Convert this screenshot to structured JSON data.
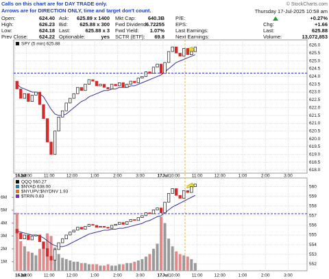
{
  "header": {
    "note_lines": [
      "Calls on this chart are for DAY TRADE only.",
      "Arrows are for DIRECTION ONLY, time and target don't count."
    ],
    "credit": "© StockCharts.com",
    "timestamp": "Thursday 17-Jul-2025 10:58 am"
  },
  "quote": {
    "rows": [
      [
        [
          "Open:",
          "624.40"
        ],
        [
          "Ask:",
          "625.89 x 1400"
        ],
        [
          "Mkt Cap:",
          "640.3B"
        ],
        [
          "P/E:"
        ],
        [
          "+0.27%"
        ]
      ],
      [
        [
          "High:",
          "626.23"
        ],
        [
          "Bid:",
          "625.88 x 300"
        ],
        [
          "Fwd Dividend:",
          "6.72255"
        ],
        [
          "EPS:"
        ],
        [
          "Chg:",
          "+1.66"
        ]
      ],
      [
        [
          "Low:",
          "624.18"
        ],
        [
          "Last:",
          "625.88 x 3"
        ],
        [
          "Fwd Yield:",
          "1.07%"
        ],
        [
          "Last Earnings:"
        ],
        [
          "Last:",
          "625.88"
        ]
      ],
      [
        [
          "Prev Close:",
          "624.22"
        ],
        [
          "Optionable:",
          "yes"
        ],
        [
          "SCTR (ETF):",
          "69.8"
        ],
        [
          "Next Earnings:"
        ],
        [
          "Volume:",
          "13,072,853"
        ]
      ]
    ]
  },
  "chart_data": [
    {
      "type": "candlestick",
      "xtick_labels": [
        "16Jul",
        "10:00",
        "11:00",
        "12:00",
        "1:00",
        "2:00",
        "3:00",
        "17Jul",
        "10:00",
        "11:00",
        "12:00",
        "1:00",
        "2:00",
        "3:00"
      ],
      "ylim": [
        617.8,
        626.35
      ],
      "yticks": [
        {
          "value": 618,
          "label": "618.0"
        },
        {
          "value": 618.5,
          "label": "618.5"
        },
        {
          "value": 619,
          "label": "619.0"
        },
        {
          "value": 619.5,
          "label": "619.5"
        },
        {
          "value": 620,
          "label": "620.0"
        },
        {
          "value": 620.5,
          "label": "620.5"
        },
        {
          "value": 621,
          "label": "621.0"
        },
        {
          "value": 621.5,
          "label": "621.5"
        },
        {
          "value": 622,
          "label": "622.0"
        },
        {
          "value": 622.5,
          "label": "622.5"
        },
        {
          "value": 623,
          "label": "623.0"
        },
        {
          "value": 623.5,
          "label": "623.5"
        },
        {
          "value": 624,
          "label": "624.0"
        },
        {
          "value": 624.5,
          "label": "624.5"
        },
        {
          "value": 625,
          "label": "625.0"
        },
        {
          "value": 625.5,
          "label": "625.5"
        },
        {
          "value": 626,
          "label": "626.0"
        }
      ],
      "ref_line": {
        "value": 624.22,
        "color": "#2a2ad0"
      },
      "series": [
        {
          "name": "SPY (5 min) 625.88",
          "open": 623.7,
          "color_up": "#111111",
          "color_down": "#d42a2a",
          "values": [
            623.2,
            622.6,
            622.9,
            622.4,
            622.8,
            623.0,
            622.2,
            621.3,
            619.8,
            619.0,
            620.5,
            621.4,
            621.8,
            622.3,
            622.6,
            622.9,
            623.3,
            623.1,
            623.5,
            623.8,
            623.7,
            623.4,
            623.5,
            623.3,
            623.2,
            623.5,
            623.4,
            623.6,
            623.3,
            623.5,
            623.7,
            623.6,
            623.9,
            624.0,
            624.3,
            624.2,
            624.6,
            624.8,
            624.2,
            624.9,
            625.6,
            625.9,
            625.5,
            625.3,
            625.8,
            625.4,
            625.6,
            625.88
          ]
        },
        {
          "color": "#33339a",
          "values": [
            623.5,
            623.3,
            623.2,
            623.1,
            623.0,
            623.0,
            622.9,
            622.7,
            622.3,
            621.9,
            621.6,
            621.5,
            621.5,
            621.6,
            621.8,
            622.0,
            622.2,
            622.4,
            622.5,
            622.7,
            622.8,
            622.9,
            623.0,
            623.1,
            623.1,
            623.2,
            623.2,
            623.3,
            623.3,
            623.3,
            623.4,
            623.4,
            623.5,
            623.6,
            623.7,
            623.8,
            623.9,
            624.0,
            624.1,
            624.3,
            624.5,
            624.7,
            624.9,
            625.0,
            625.1,
            625.2,
            625.3,
            625.4
          ]
        }
      ]
    },
    {
      "type": "candlestick",
      "xtick_labels": [
        "16Jul",
        "10:00",
        "11:00",
        "12:00",
        "1:00",
        "2:00",
        "3:00",
        "17Jul",
        "10:00",
        "11:00",
        "12:00",
        "1:00",
        "2:00",
        "3:00"
      ],
      "legend_extra": [
        "$NYAD 638.00",
        "$NYUPV:$NYDNV 1.93",
        "$TRIN 0.83"
      ],
      "ylim": [
        551.3,
        560.9
      ],
      "yticks": [
        552,
        553,
        554,
        555,
        556,
        557,
        558,
        559,
        560
      ],
      "ref_line": {
        "value": 557.2,
        "color": "#2a2ad0"
      },
      "volume": {
        "color_up": "#9a9a9a",
        "color_down": "#e08a8a",
        "vlim": [
          0.3,
          7.5
        ],
        "vticks": [
          {
            "value": 1,
            "label": "1M"
          },
          {
            "value": 2,
            "label": "2M"
          },
          {
            "value": 3,
            "label": "3M"
          },
          {
            "value": 4,
            "label": "4M"
          },
          {
            "value": 5,
            "label": "5M"
          },
          {
            "value": 6,
            "label": "6M"
          }
        ],
        "values": [
          4.8,
          2.6,
          2.2,
          1.8,
          1.7,
          1.5,
          2.0,
          2.3,
          3.2,
          3.0,
          2.1,
          1.6,
          1.3,
          1.2,
          1.1,
          1.0,
          1.0,
          0.9,
          0.9,
          0.8,
          0.8,
          0.8,
          0.7,
          0.7,
          0.8,
          0.7,
          0.7,
          0.8,
          0.8,
          0.9,
          0.9,
          1.0,
          1.1,
          1.2,
          1.4,
          1.6,
          2.0,
          2.4,
          4.5,
          4.0,
          2.8,
          2.2,
          1.8,
          1.6,
          1.5,
          1.4,
          1.2,
          0.9
        ]
      },
      "series": [
        {
          "name": "QQQ 560.27",
          "open": 555.6,
          "color_up": "#111111",
          "color_down": "#d42a2a",
          "values": [
            555.2,
            554.6,
            555.0,
            554.5,
            554.9,
            555.0,
            554.3,
            553.6,
            552.8,
            552.4,
            553.5,
            554.2,
            554.6,
            555.0,
            555.3,
            555.5,
            555.8,
            555.6,
            555.9,
            556.1,
            556.0,
            555.8,
            555.9,
            555.8,
            555.7,
            556.0,
            556.1,
            556.3,
            556.1,
            556.4,
            556.6,
            556.5,
            556.8,
            557.0,
            557.3,
            557.2,
            557.6,
            557.8,
            557.3,
            558.4,
            559.3,
            559.8,
            559.1,
            558.8,
            559.6,
            559.4,
            560.0,
            560.27
          ]
        },
        {
          "color": "#33339a",
          "values": [
            555.4,
            555.3,
            555.2,
            555.1,
            555.0,
            555.0,
            554.9,
            554.7,
            554.4,
            554.1,
            553.9,
            553.8,
            553.8,
            553.9,
            554.1,
            554.3,
            554.5,
            554.7,
            554.9,
            555.1,
            555.2,
            555.3,
            555.4,
            555.5,
            555.5,
            555.6,
            555.6,
            555.7,
            555.7,
            555.8,
            555.9,
            556.0,
            556.1,
            556.2,
            556.4,
            556.5,
            556.7,
            556.9,
            557.0,
            557.3,
            557.6,
            557.9,
            558.1,
            558.3,
            558.5,
            558.7,
            558.9,
            559.1
          ]
        }
      ]
    }
  ]
}
